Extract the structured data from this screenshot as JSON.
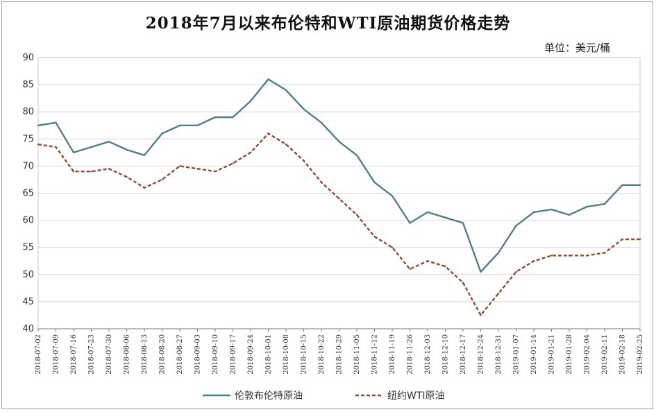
{
  "chart_data": {
    "type": "line",
    "title": "2018年7月以来布伦特和WTI原油期货价格走势",
    "unit": "单位：美元/桶",
    "ylim": [
      40,
      90
    ],
    "yticks": [
      40,
      45,
      50,
      55,
      60,
      65,
      70,
      75,
      80,
      85,
      90
    ],
    "grid": true,
    "legend_position": "bottom",
    "x": [
      "2018-07-02",
      "2018-07-09",
      "2018-07-16",
      "2018-07-23",
      "2018-07-30",
      "2018-08-06",
      "2018-08-13",
      "2018-08-20",
      "2018-08-27",
      "2018-09-03",
      "2018-09-10",
      "2018-09-17",
      "2018-09-24",
      "2018-10-01",
      "2018-10-08",
      "2018-10-15",
      "2018-10-22",
      "2018-10-29",
      "2018-11-05",
      "2018-11-12",
      "2018-11-19",
      "2018-11-26",
      "2018-12-03",
      "2018-12-10",
      "2018-12-17",
      "2018-12-24",
      "2018-12-31",
      "2019-01-07",
      "2019-01-14",
      "2019-01-21",
      "2019-01-28",
      "2019-02-04",
      "2019-02-11",
      "2019-02-18",
      "2019-02-25"
    ],
    "series": [
      {
        "name": "伦敦布伦特原油",
        "color": "#4f7f86",
        "style": "solid",
        "values": [
          77.5,
          78.0,
          72.5,
          73.5,
          74.5,
          73.0,
          72.0,
          76.0,
          77.5,
          77.5,
          79.0,
          79.0,
          82.0,
          86.0,
          84.0,
          80.5,
          78.0,
          74.5,
          72.0,
          67.0,
          64.5,
          59.5,
          61.5,
          60.5,
          59.5,
          50.5,
          54.0,
          59.0,
          61.5,
          62.0,
          61.0,
          62.5,
          63.0,
          66.5,
          66.5
        ]
      },
      {
        "name": "纽约WTI原油",
        "color": "#8b4a36",
        "style": "dashed",
        "values": [
          74.0,
          73.5,
          69.0,
          69.0,
          69.5,
          68.0,
          66.0,
          67.5,
          70.0,
          69.5,
          69.0,
          70.5,
          72.5,
          76.0,
          74.0,
          71.0,
          67.0,
          64.0,
          61.0,
          57.0,
          55.0,
          51.0,
          52.5,
          51.5,
          48.5,
          42.5,
          46.5,
          50.5,
          52.5,
          53.5,
          53.5,
          53.5,
          54.0,
          56.5,
          56.5
        ]
      }
    ]
  }
}
